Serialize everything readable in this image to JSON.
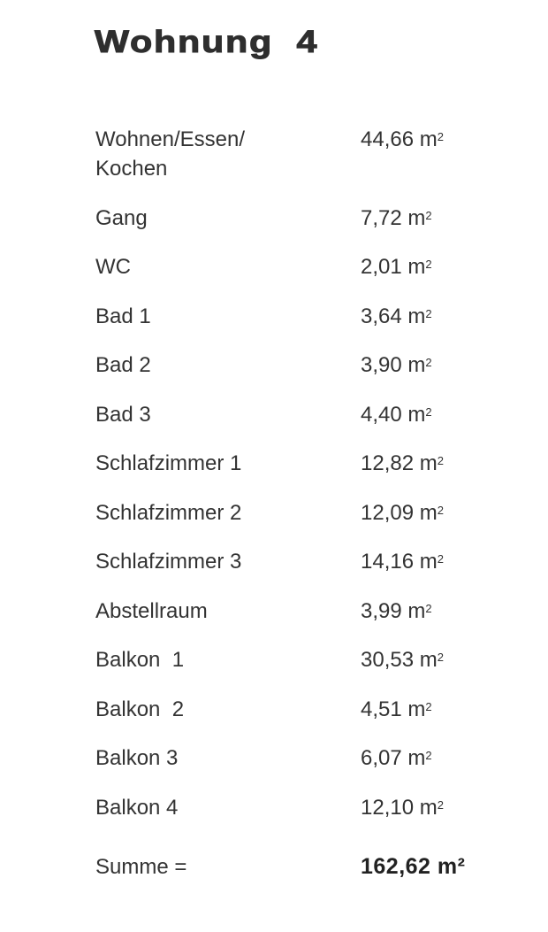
{
  "title": "Wohnung  4",
  "unit": "m",
  "unit_exp": "2",
  "rows": [
    {
      "label": "Wohnen/Essen/\nKochen",
      "value": "44,66"
    },
    {
      "label": "Gang",
      "value": "7,72"
    },
    {
      "label": "WC",
      "value": "2,01"
    },
    {
      "label": "Bad 1",
      "value": "3,64"
    },
    {
      "label": "Bad 2",
      "value": "3,90"
    },
    {
      "label": "Bad 3",
      "value": "4,40"
    },
    {
      "label": "Schlafzimmer 1",
      "value": "12,82"
    },
    {
      "label": "Schlafzimmer 2",
      "value": "12,09"
    },
    {
      "label": "Schlafzimmer 3",
      "value": "14,16"
    },
    {
      "label": "Abstellraum",
      "value": "3,99"
    },
    {
      "label": "Balkon  1",
      "value": "30,53"
    },
    {
      "label": "Balkon  2",
      "value": "4,51"
    },
    {
      "label": "Balkon 3",
      "value": "6,07"
    },
    {
      "label": "Balkon 4",
      "value": "12,10"
    }
  ],
  "total": {
    "label": "Summe =",
    "value": "162,62 m²"
  }
}
